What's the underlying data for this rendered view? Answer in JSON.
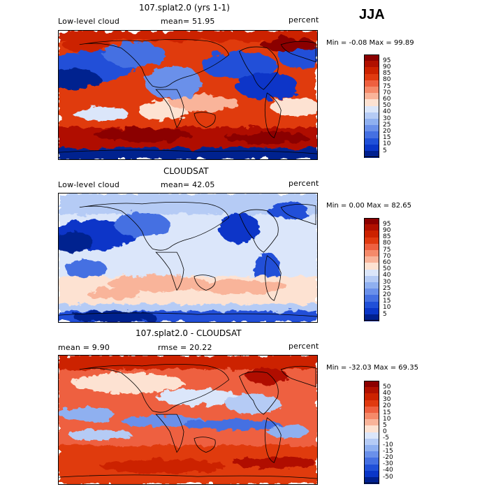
{
  "season": "JJA",
  "panels": [
    {
      "title": "107.splat2.0 (yrs 1-1)",
      "left_label": "Low-level cloud",
      "mid_label": "mean=  51.95",
      "right_label": "percent",
      "minmax": "Min =  -0.08 Max =  99.89",
      "colorbar": {
        "labels": [
          "95",
          "90",
          "85",
          "80",
          "75",
          "70",
          "60",
          "50",
          "40",
          "30",
          "25",
          "20",
          "15",
          "10",
          "5"
        ],
        "colors": [
          "#8b0000",
          "#b01000",
          "#cc2200",
          "#e03a10",
          "#ee6040",
          "#f58a6a",
          "#f9b49a",
          "#fde2d2",
          "#dbe6fa",
          "#b5cbf5",
          "#8fb0f0",
          "#6a90ea",
          "#4570e2",
          "#2050d8",
          "#0a36c8",
          "#00208f"
        ]
      }
    },
    {
      "title": "CLOUDSAT",
      "left_label": "Low-level cloud",
      "mid_label": "mean=  42.05",
      "right_label": "percent",
      "minmax": "Min =   0.00 Max =  82.65",
      "colorbar": {
        "labels": [
          "95",
          "90",
          "85",
          "80",
          "75",
          "70",
          "60",
          "50",
          "40",
          "30",
          "25",
          "20",
          "15",
          "10",
          "5"
        ],
        "colors": [
          "#8b0000",
          "#b01000",
          "#cc2200",
          "#e03a10",
          "#ee6040",
          "#f58a6a",
          "#f9b49a",
          "#fde2d2",
          "#dbe6fa",
          "#b5cbf5",
          "#8fb0f0",
          "#6a90ea",
          "#4570e2",
          "#2050d8",
          "#0a36c8",
          "#00208f"
        ]
      }
    },
    {
      "title": "107.splat2.0 - CLOUDSAT",
      "left_label": "mean =   9.90",
      "mid_label": "rmse =  20.22",
      "right_label": "percent",
      "minmax": "Min = -32.03 Max =  69.35",
      "colorbar": {
        "labels": [
          "50",
          "40",
          "30",
          "20",
          "15",
          "10",
          "5",
          "0",
          "-5",
          "-10",
          "-15",
          "-20",
          "-30",
          "-40",
          "-50"
        ],
        "colors": [
          "#8b0000",
          "#b01000",
          "#cc2200",
          "#e03a10",
          "#ee6040",
          "#f58a6a",
          "#f9b49a",
          "#fde2d2",
          "#dbe6fa",
          "#b5cbf5",
          "#8fb0f0",
          "#6a90ea",
          "#4570e2",
          "#2050d8",
          "#0a36c8",
          "#00208f"
        ]
      }
    }
  ],
  "chart_data": [
    {
      "type": "heatmap",
      "title": "107.splat2.0 (yrs 1-1)",
      "variable": "Low-level cloud",
      "units": "percent",
      "mean": 51.95,
      "min": -0.08,
      "max": 99.89,
      "contour_levels": [
        5,
        10,
        15,
        20,
        25,
        30,
        40,
        50,
        60,
        70,
        75,
        80,
        85,
        90,
        95
      ]
    },
    {
      "type": "heatmap",
      "title": "CLOUDSAT",
      "variable": "Low-level cloud",
      "units": "percent",
      "mean": 42.05,
      "min": 0.0,
      "max": 82.65,
      "contour_levels": [
        5,
        10,
        15,
        20,
        25,
        30,
        40,
        50,
        60,
        70,
        75,
        80,
        85,
        90,
        95
      ]
    },
    {
      "type": "heatmap",
      "title": "107.splat2.0 - CLOUDSAT",
      "units": "percent",
      "mean": 9.9,
      "rmse": 20.22,
      "min": -32.03,
      "max": 69.35,
      "contour_levels": [
        -50,
        -40,
        -30,
        -20,
        -15,
        -10,
        -5,
        0,
        5,
        10,
        15,
        20,
        30,
        40,
        50
      ]
    }
  ]
}
